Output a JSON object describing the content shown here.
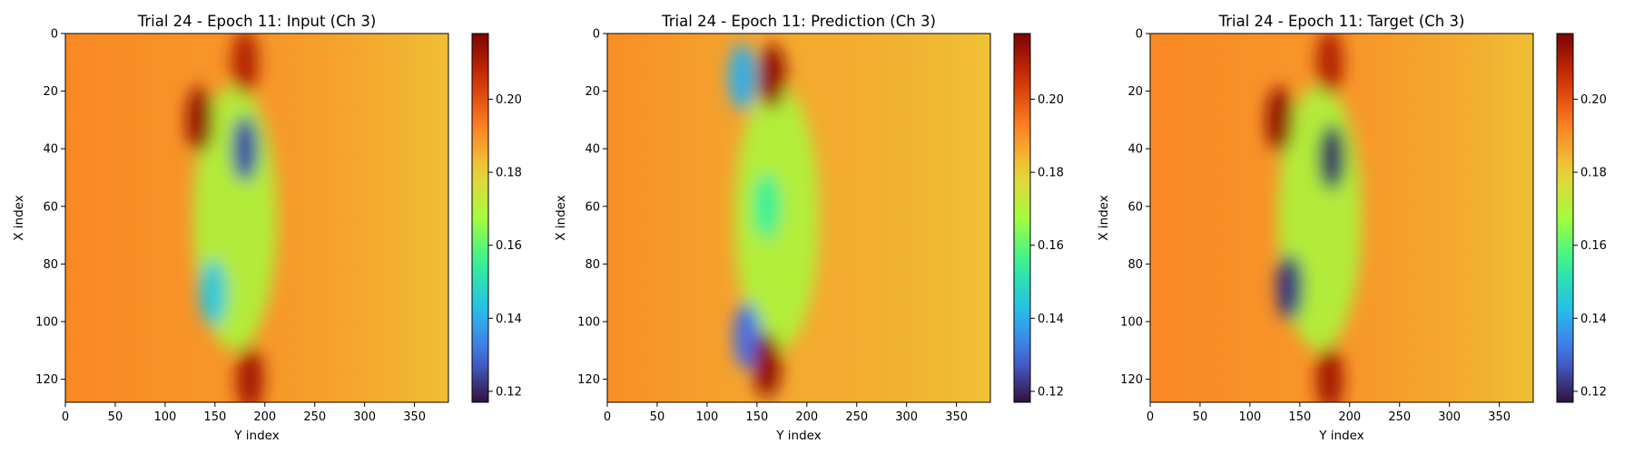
{
  "figure": {
    "panels": [
      {
        "title": "Trial 24 - Epoch 11: Input (Ch 3)",
        "xlabel": "Y index",
        "ylabel": "X index"
      },
      {
        "title": "Trial 24 - Epoch 11: Prediction (Ch 3)",
        "xlabel": "Y index",
        "ylabel": "X index"
      },
      {
        "title": "Trial 24 - Epoch 11: Target (Ch 3)",
        "xlabel": "Y index",
        "ylabel": "X index"
      }
    ]
  },
  "chart_data": [
    {
      "type": "heatmap",
      "title": "Trial 24 - Epoch 11: Input (Ch 3)",
      "xlabel": "Y index",
      "ylabel": "X index",
      "xlim": [
        0,
        384
      ],
      "ylim": [
        128,
        0
      ],
      "xticks": [
        0,
        50,
        100,
        150,
        200,
        250,
        300,
        350
      ],
      "yticks": [
        0,
        20,
        40,
        60,
        80,
        100,
        120
      ],
      "colormap": "turbo",
      "colorbar": {
        "vmin": 0.117,
        "vmax": 0.218,
        "ticks": [
          "0.12",
          "0.14",
          "0.16",
          "0.18",
          "0.20"
        ]
      },
      "background_value": 0.19,
      "features": [
        {
          "x": 180,
          "y": 40,
          "value": 0.125
        },
        {
          "x": 148,
          "y": 90,
          "value": 0.145
        },
        {
          "x": 135,
          "y": 30,
          "value": 0.215
        },
        {
          "x": 185,
          "y": 120,
          "value": 0.212
        },
        {
          "x": 180,
          "y": 10,
          "value": 0.21
        }
      ]
    },
    {
      "type": "heatmap",
      "title": "Trial 24 - Epoch 11: Prediction (Ch 3)",
      "xlabel": "Y index",
      "ylabel": "X index",
      "xlim": [
        0,
        384
      ],
      "ylim": [
        128,
        0
      ],
      "xticks": [
        0,
        50,
        100,
        150,
        200,
        250,
        300,
        350
      ],
      "yticks": [
        0,
        20,
        40,
        60,
        80,
        100,
        120
      ],
      "colormap": "turbo",
      "colorbar": {
        "vmin": 0.117,
        "vmax": 0.218,
        "ticks": [
          "0.12",
          "0.14",
          "0.16",
          "0.18",
          "0.20"
        ]
      },
      "background_value": 0.185,
      "features": [
        {
          "x": 140,
          "y": 105,
          "value": 0.13
        },
        {
          "x": 135,
          "y": 15,
          "value": 0.14
        },
        {
          "x": 160,
          "y": 60,
          "value": 0.155
        },
        {
          "x": 165,
          "y": 15,
          "value": 0.215
        },
        {
          "x": 160,
          "y": 115,
          "value": 0.215
        }
      ]
    },
    {
      "type": "heatmap",
      "title": "Trial 24 - Epoch 11: Target (Ch 3)",
      "xlabel": "Y index",
      "ylabel": "X index",
      "xlim": [
        0,
        384
      ],
      "ylim": [
        128,
        0
      ],
      "xticks": [
        0,
        50,
        100,
        150,
        200,
        250,
        300,
        350
      ],
      "yticks": [
        0,
        20,
        40,
        60,
        80,
        100,
        120
      ],
      "colormap": "turbo",
      "colorbar": {
        "vmin": 0.117,
        "vmax": 0.218,
        "ticks": [
          "0.12",
          "0.14",
          "0.16",
          "0.18",
          "0.20"
        ]
      },
      "background_value": 0.19,
      "features": [
        {
          "x": 182,
          "y": 43,
          "value": 0.12
        },
        {
          "x": 140,
          "y": 88,
          "value": 0.122
        },
        {
          "x": 130,
          "y": 30,
          "value": 0.215
        },
        {
          "x": 180,
          "y": 120,
          "value": 0.212
        },
        {
          "x": 180,
          "y": 10,
          "value": 0.21
        }
      ]
    }
  ]
}
